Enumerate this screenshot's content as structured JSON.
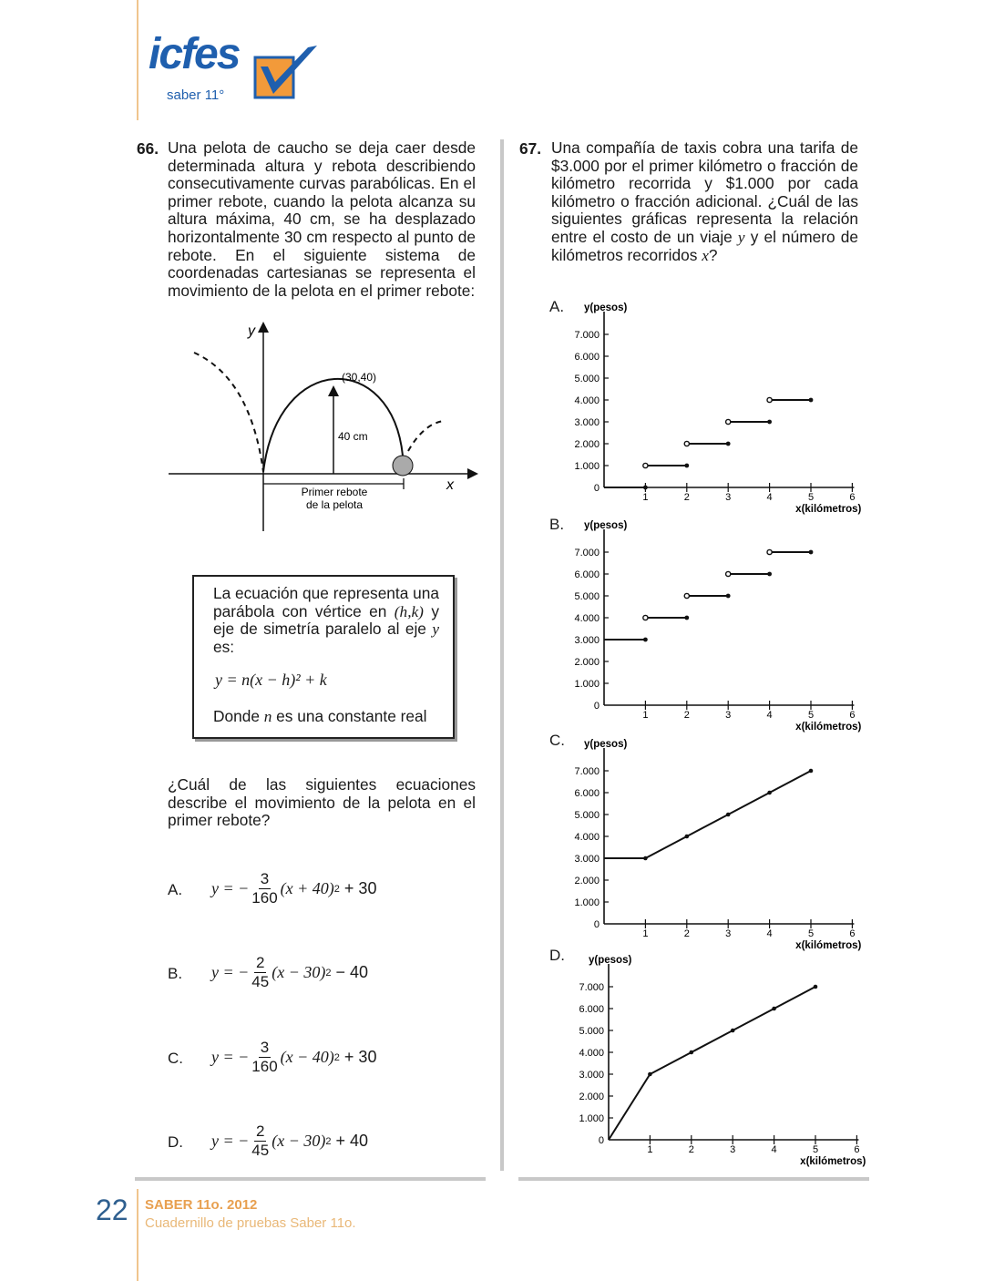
{
  "header": {
    "logo_text": "icfes",
    "logo_subtitle": "saber 11°",
    "brand_colors": {
      "blue": "#1f5fae",
      "orange": "#f29a3a"
    }
  },
  "q66": {
    "number": "66.",
    "text": "Una pelota de caucho se deja caer desde determinada altura y rebota describiendo consecutivamente curvas parabólicas. En el primer rebote, cuando la pelota alcanza su altura máxima, 40 cm, se ha desplazado horizontalmente 30 cm respecto al punto de rebote. En el siguiente sistema de coordenadas cartesianas se representa el movimiento de la pelota en el primer rebote:",
    "diagram": {
      "y_label": "y",
      "x_label": "x",
      "vertex_label": "(30,40)",
      "height_label": "40 cm",
      "span_label_1": "Primer rebote",
      "span_label_2": "de la pelota"
    },
    "box": {
      "text_1": "La ecuación que representa una parábola con vértice en",
      "text_hk": "(h,k)",
      "text_2": " y eje de simetría paralelo al eje ",
      "text_y": "y",
      "text_3": " es:",
      "formula": "y = n(x − h)² + k",
      "where_1": "Donde ",
      "where_n": "n",
      "where_2": " es una constante real"
    },
    "question": "¿Cuál de las siguientes ecuaciones describe el movimiento de la pelota en el primer rebote?",
    "options": [
      {
        "letter": "A.",
        "lhs": "y = −",
        "num": "3",
        "den": "160",
        "paren": "(x + 40)",
        "exp": "2",
        "tail": " + 30"
      },
      {
        "letter": "B.",
        "lhs": "y = −",
        "num": "2",
        "den": "45",
        "paren": "(x − 30)",
        "exp": "2",
        "tail": " − 40"
      },
      {
        "letter": "C.",
        "lhs": "y = −",
        "num": "3",
        "den": "160",
        "paren": "(x − 40)",
        "exp": "2",
        "tail": " + 30"
      },
      {
        "letter": "D.",
        "lhs": "y = −",
        "num": "2",
        "den": "45",
        "paren": "(x − 30)",
        "exp": "2",
        "tail": " + 40"
      }
    ]
  },
  "q67": {
    "number": "67.",
    "text_1": "Una compañía de taxis cobra una tarifa de $3.000 por el primer kilómetro o fracción de kilómetro recorrida y $1.000 por cada kilómetro o fracción adicional. ¿Cuál de las siguientes gráficas representa la relación entre el costo de un viaje ",
    "text_y": "y",
    "text_2": " y el número de kilómetros recorridos ",
    "text_x": "x",
    "text_3": "?"
  },
  "chart_data": [
    {
      "type": "line",
      "option": "A.",
      "ylabel": "y(pesos)",
      "xlabel": "x(kilómetros)",
      "yticks": [
        "0",
        "1.000",
        "2.000",
        "3.000",
        "4.000",
        "5.000",
        "6.000",
        "7.000"
      ],
      "xticks": [
        "1",
        "2",
        "3",
        "4",
        "5",
        "6"
      ],
      "xlim": [
        0,
        6
      ],
      "ylim": [
        0,
        7000
      ],
      "segments": [
        {
          "x": [
            0,
            1
          ],
          "y": [
            0,
            0
          ],
          "open_start": false,
          "closed_end": true
        },
        {
          "x": [
            1,
            2
          ],
          "y": [
            1000,
            1000
          ],
          "open_start": true,
          "closed_end": true
        },
        {
          "x": [
            2,
            3
          ],
          "y": [
            2000,
            2000
          ],
          "open_start": true,
          "closed_end": true
        },
        {
          "x": [
            3,
            4
          ],
          "y": [
            3000,
            3000
          ],
          "open_start": true,
          "closed_end": true
        },
        {
          "x": [
            4,
            5
          ],
          "y": [
            4000,
            4000
          ],
          "open_start": true,
          "closed_end": true
        }
      ]
    },
    {
      "type": "line",
      "option": "B.",
      "ylabel": "y(pesos)",
      "xlabel": "x(kilómetros)",
      "yticks": [
        "0",
        "1.000",
        "2.000",
        "3.000",
        "4.000",
        "5.000",
        "6.000",
        "7.000"
      ],
      "xticks": [
        "1",
        "2",
        "3",
        "4",
        "5",
        "6"
      ],
      "xlim": [
        0,
        6
      ],
      "ylim": [
        0,
        7000
      ],
      "segments": [
        {
          "x": [
            0,
            1
          ],
          "y": [
            3000,
            3000
          ],
          "open_start": false,
          "closed_end": true
        },
        {
          "x": [
            1,
            2
          ],
          "y": [
            4000,
            4000
          ],
          "open_start": true,
          "closed_end": true
        },
        {
          "x": [
            2,
            3
          ],
          "y": [
            5000,
            5000
          ],
          "open_start": true,
          "closed_end": true
        },
        {
          "x": [
            3,
            4
          ],
          "y": [
            6000,
            6000
          ],
          "open_start": true,
          "closed_end": true
        },
        {
          "x": [
            4,
            5
          ],
          "y": [
            7000,
            7000
          ],
          "open_start": true,
          "closed_end": true
        }
      ]
    },
    {
      "type": "line",
      "option": "C.",
      "ylabel": "y(pesos)",
      "xlabel": "x(kilómetros)",
      "yticks": [
        "0",
        "1.000",
        "2.000",
        "3.000",
        "4.000",
        "5.000",
        "6.000",
        "7.000"
      ],
      "xticks": [
        "1",
        "2",
        "3",
        "4",
        "5",
        "6"
      ],
      "xlim": [
        0,
        6
      ],
      "ylim": [
        0,
        7000
      ],
      "points": {
        "x": [
          0,
          1,
          2,
          3,
          4,
          5
        ],
        "y": [
          3000,
          3000,
          4000,
          5000,
          6000,
          7000
        ]
      },
      "markers_from": 1
    },
    {
      "type": "line",
      "option": "D.",
      "ylabel": "y(pesos)",
      "xlabel": "x(kilómetros)",
      "yticks": [
        "0",
        "1.000",
        "2.000",
        "3.000",
        "4.000",
        "5.000",
        "6.000",
        "7.000"
      ],
      "xticks": [
        "1",
        "2",
        "3",
        "4",
        "5",
        "6"
      ],
      "xlim": [
        0,
        6
      ],
      "ylim": [
        0,
        7000
      ],
      "points": {
        "x": [
          0,
          1,
          2,
          3,
          4,
          5
        ],
        "y": [
          0,
          3000,
          4000,
          5000,
          6000,
          7000
        ]
      },
      "markers_from": 1
    }
  ],
  "footer": {
    "page_number": "22",
    "title": "SABER 11o. 2012",
    "subtitle": "Cuadernillo de pruebas Saber 11o."
  }
}
